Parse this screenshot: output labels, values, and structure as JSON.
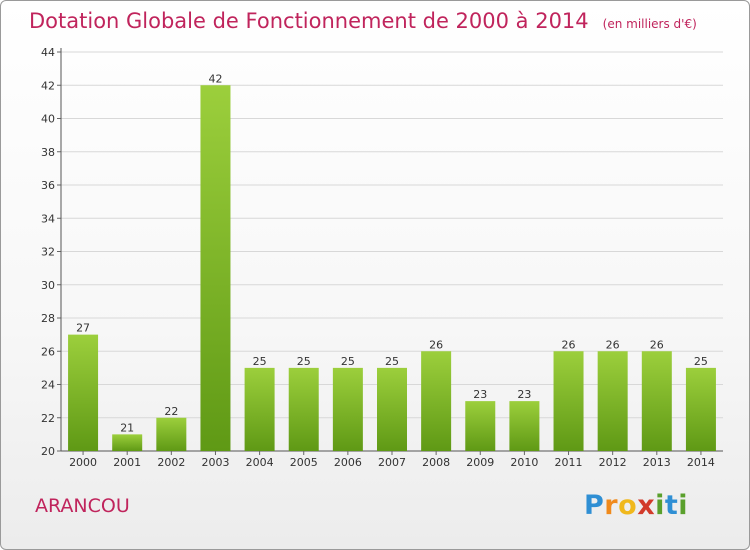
{
  "title": "Dotation Globale de Fonctionnement de 2000 à 2014",
  "subtitle": "(en milliers d'€)",
  "commune": "ARANCOU",
  "brand": {
    "letters": [
      "P",
      "r",
      "o",
      "x",
      "i",
      "t",
      "i"
    ],
    "colors": [
      "#2f8fd4",
      "#f08a1c",
      "#f0b81c",
      "#d23b2b",
      "#5aa02c",
      "#2f8fd4",
      "#5aa02c"
    ]
  },
  "colors": {
    "bar_top": "#9ccf3c",
    "bar_bottom": "#5f9915",
    "title": "#c0245c",
    "grid": "#d8d8d8"
  },
  "chart_data": {
    "type": "bar",
    "title": "Dotation Globale de Fonctionnement de 2000 à 2014",
    "subtitle": "(en milliers d'€)",
    "categories": [
      "2000",
      "2001",
      "2002",
      "2003",
      "2004",
      "2005",
      "2006",
      "2007",
      "2008",
      "2009",
      "2010",
      "2011",
      "2012",
      "2013",
      "2014"
    ],
    "values": [
      27,
      21,
      22,
      42,
      25,
      25,
      25,
      25,
      26,
      23,
      23,
      26,
      26,
      26,
      25
    ],
    "ylim": [
      20,
      44
    ],
    "yticks": [
      20,
      22,
      24,
      26,
      28,
      30,
      32,
      34,
      36,
      38,
      40,
      42,
      44
    ],
    "grid": true,
    "data_labels": true
  }
}
